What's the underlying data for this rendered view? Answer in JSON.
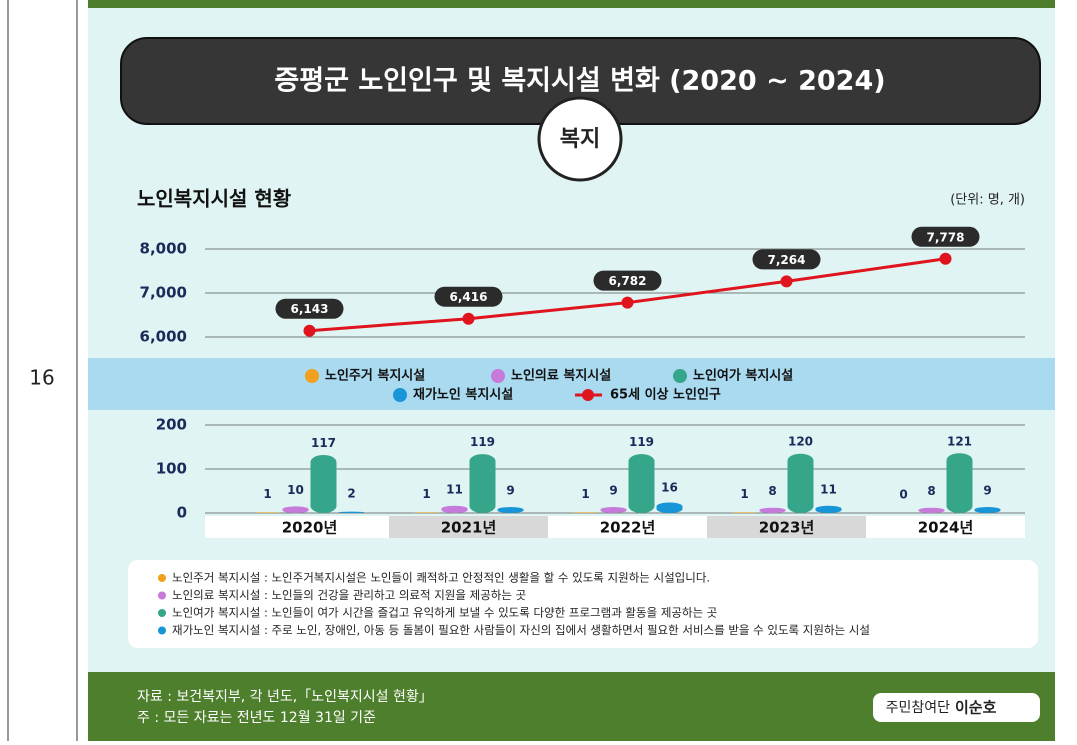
{
  "row_number": "16",
  "title": "증평군 노인인구 및 복지시설 변화 (2020 ~ 2024)",
  "badge": "복지",
  "section_title": "노인복지시설 현황",
  "unit": "(단위: 명, 개)",
  "chart_data": [
    {
      "type": "line",
      "series": [
        {
          "name": "65세 이상 노인인구",
          "color": "#e0141e",
          "values": [
            6143,
            6416,
            6782,
            7264,
            7778
          ],
          "value_labels": [
            "6,143",
            "6,416",
            "6,782",
            "7,264",
            "7,778"
          ]
        }
      ],
      "ylim": [
        6000,
        8000
      ],
      "yticks": [
        {
          "value": 6000,
          "label": "6,000"
        },
        {
          "value": 7000,
          "label": "7,000"
        },
        {
          "value": 8000,
          "label": "8,000"
        }
      ],
      "grid": true
    },
    {
      "type": "bar",
      "categories": [
        "2020년",
        "2021년",
        "2022년",
        "2023년",
        "2024년"
      ],
      "series": [
        {
          "name": "노인주거 복지시설",
          "color": "#f0a01e",
          "values": [
            1,
            1,
            1,
            1,
            0
          ]
        },
        {
          "name": "노인의료 복지시설",
          "color": "#c67ad9",
          "values": [
            10,
            11,
            9,
            8,
            8
          ]
        },
        {
          "name": "노인여가 복지시설",
          "color": "#35a68a",
          "values": [
            117,
            119,
            119,
            120,
            121
          ]
        },
        {
          "name": "재가노인 복지시설",
          "color": "#1895d6",
          "values": [
            2,
            9,
            16,
            11,
            9
          ]
        }
      ],
      "ylim": [
        0,
        200
      ],
      "yticks": [
        0,
        100,
        200
      ],
      "grid": true
    }
  ],
  "notes": [
    "노인주거 복지시설 : 노인주거복지시설은 노인들이 쾌적하고 안정적인 생활을 할 수 있도록 지원하는 시설입니다.",
    "노인의료 복지시설 : 노인들의 건강을 관리하고 의료적 지원을 제공하는 곳",
    "노인여가 복지시설 : 노인들이 여가 시간을 즐겁고 유익하게 보낼 수 있도록 다양한 프로그램과 활동을 제공하는 곳",
    "재가노인 복지시설 : 주로 노인, 장애인, 아동 등 돌봄이 필요한 사람들이 자신의 집에서 생활하면서 필요한 서비스를 받을 수 있도록 지원하는 시설"
  ],
  "footer": {
    "source": "자료 : 보건복지부, 각 년도,「노인복지시설 현황」",
    "note": "주 : 모든 자료는 전년도 12월 31일 기준"
  },
  "credit": {
    "role": "주민참여단",
    "name": "이순호"
  }
}
